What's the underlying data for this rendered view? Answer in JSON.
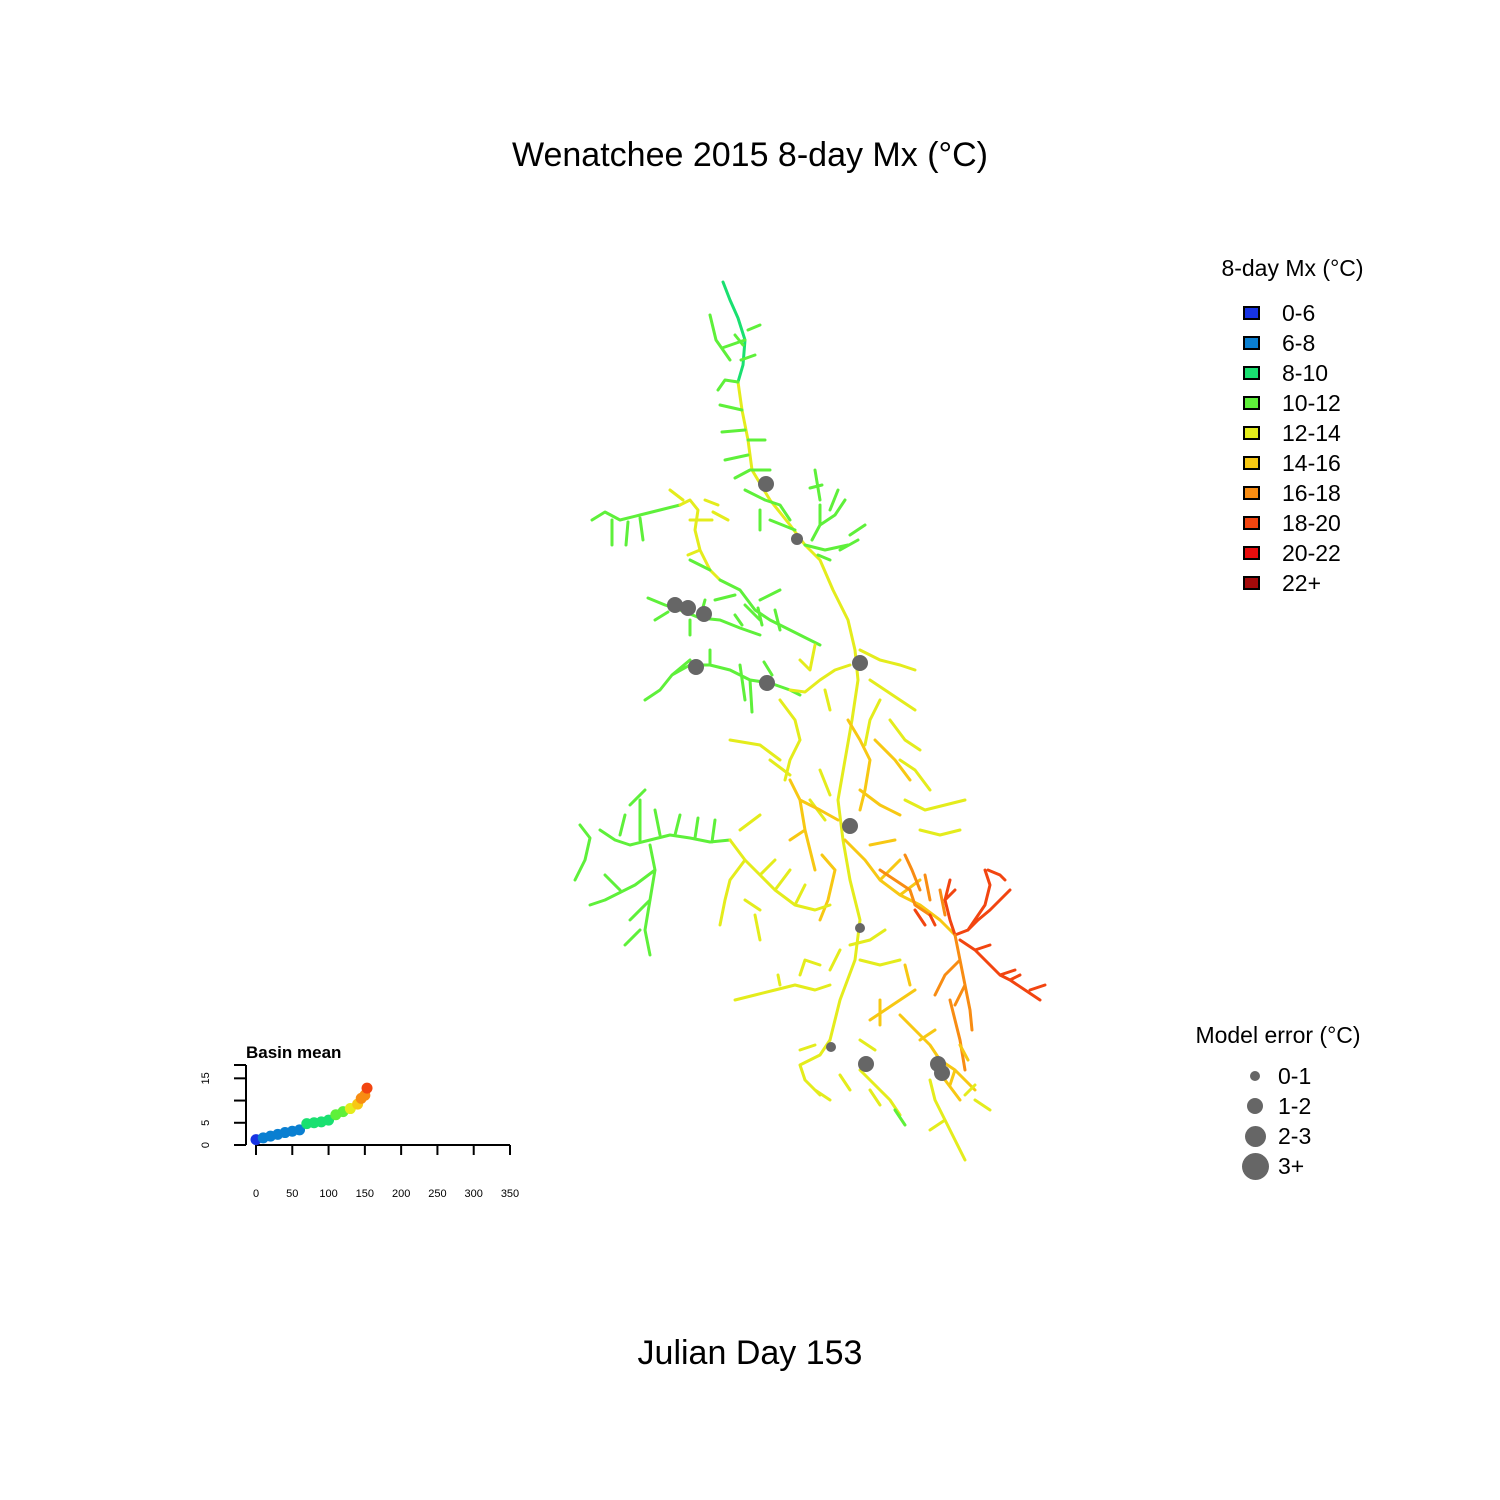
{
  "title": "Wenatchee 2015 8-day Mx (°C)",
  "footer": "Julian Day 153",
  "colors": {
    "t0_6": "#1733e3",
    "t6_8": "#0a7fd1",
    "t8_10": "#19e070",
    "t10_12": "#5ef03a",
    "t12_14": "#e4ec1c",
    "t14_16": "#f7c813",
    "t16_18": "#f88c12",
    "t18_20": "#f24510",
    "t20_22": "#e80d0d",
    "t22p": "#a30a0a",
    "site": "#666666"
  },
  "temp_legend": {
    "title": "8-day Mx (°C)",
    "items": [
      {
        "label": "0-6",
        "color": "#1733e3"
      },
      {
        "label": "6-8",
        "color": "#0a7fd1"
      },
      {
        "label": "8-10",
        "color": "#19e070"
      },
      {
        "label": "10-12",
        "color": "#5ef03a"
      },
      {
        "label": "12-14",
        "color": "#e4ec1c"
      },
      {
        "label": "14-16",
        "color": "#f7c813"
      },
      {
        "label": "16-18",
        "color": "#f88c12"
      },
      {
        "label": "18-20",
        "color": "#f24510"
      },
      {
        "label": "20-22",
        "color": "#e80d0d"
      },
      {
        "label": "22+",
        "color": "#a30a0a"
      }
    ]
  },
  "error_legend": {
    "title": "Model error (°C)",
    "items": [
      {
        "label": "0-1",
        "size": 1
      },
      {
        "label": "1-2",
        "size": 2
      },
      {
        "label": "2-3",
        "size": 3
      },
      {
        "label": "3+",
        "size": 4
      }
    ]
  },
  "chart_data": {
    "type": "scatter",
    "title": "Basin mean",
    "xlabel": "",
    "ylabel": "",
    "xlim": [
      0,
      350
    ],
    "ylim": [
      0,
      18
    ],
    "x_ticks": [
      "0",
      "50",
      "100",
      "150",
      "200",
      "250",
      "300",
      "350"
    ],
    "y_ticks": [
      "0",
      "5",
      "15"
    ],
    "x": [
      0,
      10,
      20,
      30,
      40,
      50,
      60,
      70,
      80,
      90,
      100,
      110,
      120,
      130,
      140,
      145,
      150,
      153
    ],
    "y": [
      1.2,
      1.6,
      2.0,
      2.4,
      2.8,
      3.1,
      3.4,
      4.8,
      5.0,
      5.2,
      5.6,
      6.8,
      7.5,
      8.2,
      9.2,
      10.5,
      11.2,
      12.8
    ],
    "point_colors": [
      "#1733e3",
      "#0a7fd1",
      "#0a7fd1",
      "#0a7fd1",
      "#0a7fd1",
      "#0a7fd1",
      "#0a7fd1",
      "#19e070",
      "#19e070",
      "#19e070",
      "#19e070",
      "#5ef03a",
      "#5ef03a",
      "#e4ec1c",
      "#f7c813",
      "#f88c12",
      "#f88c12",
      "#f24510"
    ]
  }
}
